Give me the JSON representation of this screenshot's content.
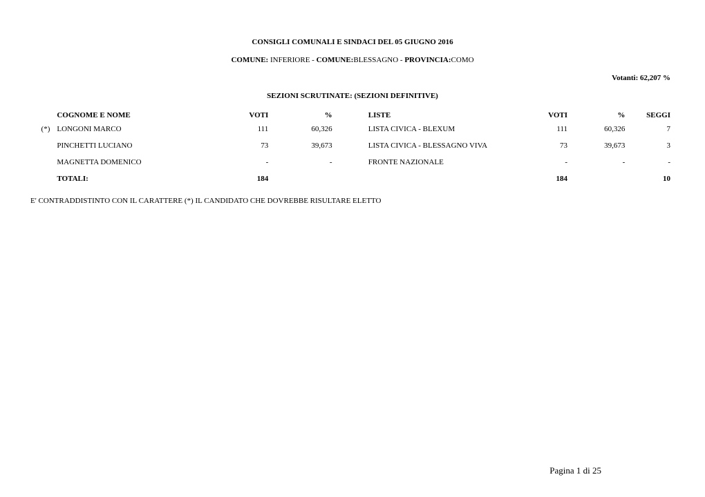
{
  "header": {
    "title": "CONSIGLI COMUNALI E SINDACI DEL  05  GIUGNO 2016",
    "comune_label1": "COMUNE:",
    "comune_val1": " INFERIORE   -   ",
    "comune_label2": "COMUNE:",
    "comune_val2": "BLESSAGNO   -   ",
    "provincia_label": "PROVINCIA:",
    "provincia_val": "COMO",
    "votanti": "Votanti: 62,207 %",
    "sezioni": "SEZIONI SCRUTINATE: (SEZIONI DEFINITIVE)"
  },
  "table": {
    "headers": {
      "nome": "COGNOME E NOME",
      "voti": "VOTI",
      "pct": "%",
      "liste": "LISTE",
      "voti2": "VOTI",
      "pct2": "%",
      "seggi": "SEGGI"
    },
    "rows": [
      {
        "marker": "(*)",
        "name": "LONGONI MARCO",
        "voti": "111",
        "pct": "60,326",
        "lista": "LISTA CIVICA - BLEXUM",
        "voti2": "111",
        "pct2": "60,326",
        "seggi": "7"
      },
      {
        "marker": "",
        "name": "PINCHETTI LUCIANO",
        "voti": "73",
        "pct": "39,673",
        "lista": "LISTA CIVICA - BLESSAGNO VIVA",
        "voti2": "73",
        "pct2": "39,673",
        "seggi": "3"
      },
      {
        "marker": "",
        "name": "MAGNETTA DOMENICO",
        "voti": "-",
        "pct": "-",
        "lista": "FRONTE NAZIONALE",
        "voti2": "-",
        "pct2": "-",
        "seggi": "-"
      }
    ],
    "totals": {
      "label": "TOTALI:",
      "voti": "184",
      "voti2": "184",
      "seggi": "10"
    }
  },
  "footnote": "E' CONTRADDISTINTO CON IL CARATTERE (*) IL CANDIDATO CHE DOVREBBE RISULTARE ELETTO",
  "pager": "Pagina 1 di 25"
}
